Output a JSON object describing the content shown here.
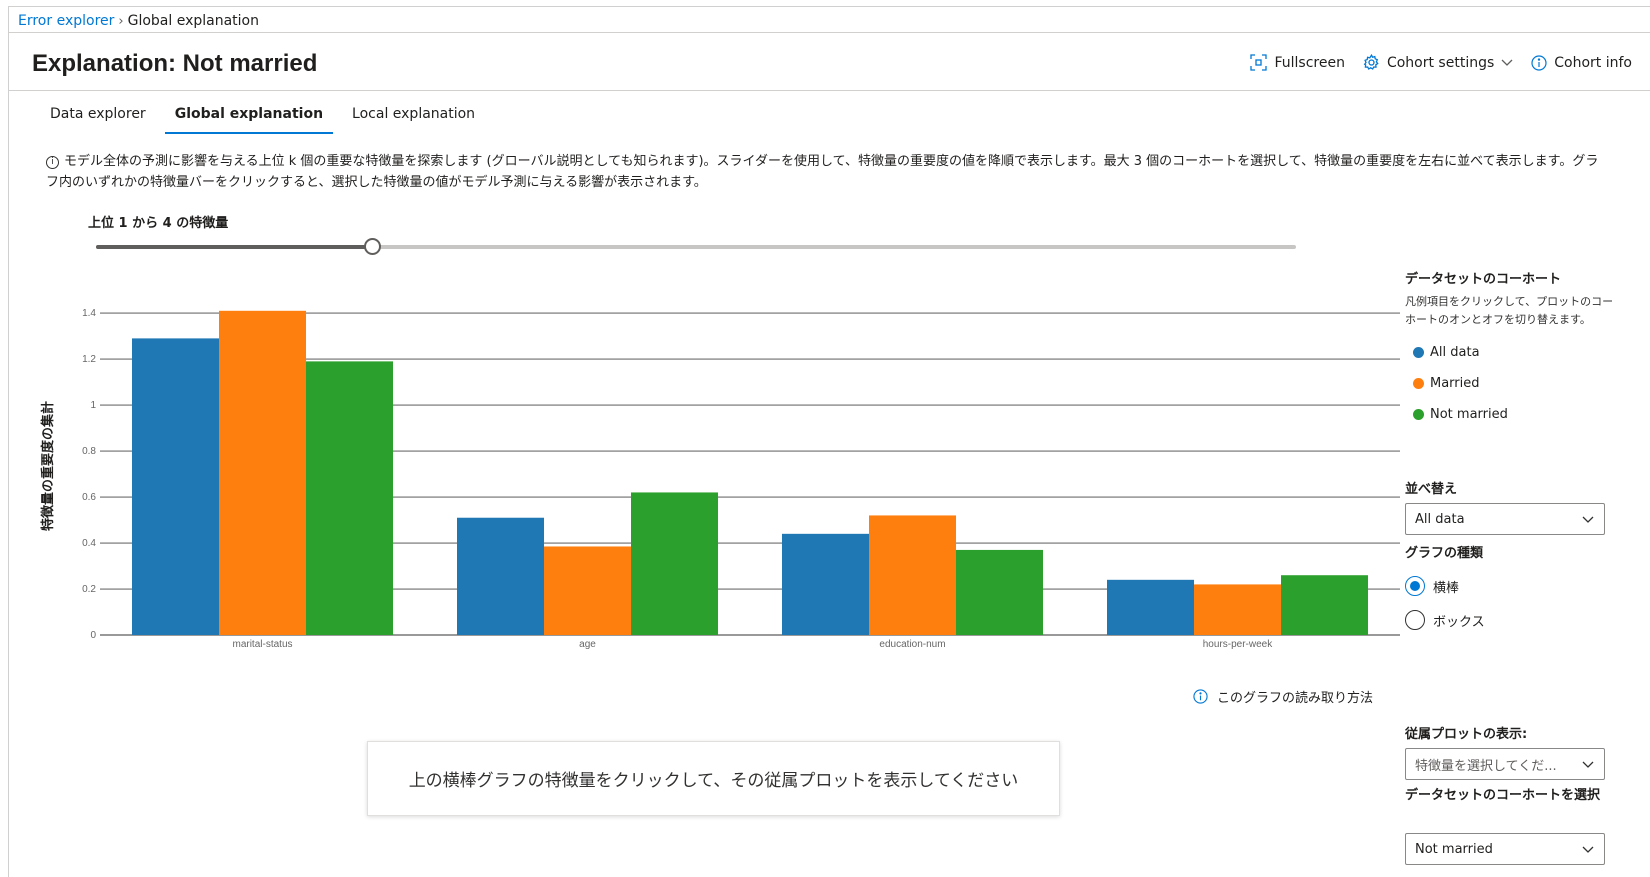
{
  "breadcrumb": {
    "parent": "Error explorer",
    "separator": "›",
    "current": "Global explanation"
  },
  "page_title": "Explanation: Not married",
  "actions": {
    "fullscreen": "Fullscreen",
    "cohort_settings": "Cohort settings",
    "cohort_info": "Cohort info"
  },
  "tabs": [
    {
      "label": "Data explorer",
      "active": false
    },
    {
      "label": "Global explanation",
      "active": true
    },
    {
      "label": "Local explanation",
      "active": false
    }
  ],
  "description": "モデル全体の予測に影響を与える上位 k 個の重要な特徴量を探索します (グローバル説明としても知られます)。スライダーを使用して、特徴量の重要度の値を降順で表示します。最大 3 個のコーホートを選択して、特徴量の重要度を左右に並べて表示します。グラフ内のいずれかの特徴量バーをクリックすると、選択した特徴量の値がモデル予測に与える影響が表示されます。",
  "slider": {
    "label": "上位 1 から 4 の特徴量",
    "value": 4,
    "fraction": 0.2298
  },
  "chart_data": {
    "type": "bar",
    "categories": [
      "marital-status",
      "age",
      "education-num",
      "hours-per-week"
    ],
    "series": [
      {
        "name": "All data",
        "color": "#1f77b4",
        "values": [
          1.29,
          0.51,
          0.44,
          0.24
        ]
      },
      {
        "name": "Married",
        "color": "#ff7f0e",
        "values": [
          1.41,
          0.385,
          0.52,
          0.22
        ]
      },
      {
        "name": "Not married",
        "color": "#2ca02c",
        "values": [
          1.19,
          0.62,
          0.37,
          0.26
        ]
      }
    ],
    "ylabel": "特徴量の重要度の集計",
    "yticks": [
      "0",
      "0.2",
      "0.4",
      "0.6",
      "0.8",
      "1",
      "1.2",
      "1.4"
    ],
    "ylim": [
      0,
      1.4
    ],
    "grid": true,
    "legend_placement": "right"
  },
  "legend_panel": {
    "heading": "データセットのコーホート",
    "note": "凡例項目をクリックして、プロットのコーホートのオンとオフを切り替えます。",
    "items": [
      "All data",
      "Married",
      "Not married"
    ]
  },
  "sort": {
    "label": "並べ替え",
    "value": "All data"
  },
  "chart_type": {
    "label": "グラフの種類",
    "options": [
      {
        "label": "横棒",
        "selected": true
      },
      {
        "label": "ボックス",
        "selected": false
      }
    ]
  },
  "how_to_read": "このグラフの読み取り方法",
  "hint": "上の横棒グラフの特徴量をクリックして、その従属プロットを表示してください",
  "dependence": {
    "label": "従属プロットの表示:",
    "placeholder": "特徴量を選択してくだ..."
  },
  "cohort_select": {
    "label": "データセットのコーホートを選択",
    "value": "Not married"
  }
}
